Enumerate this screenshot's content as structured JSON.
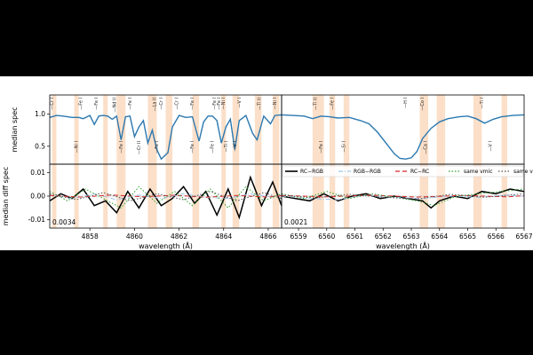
{
  "chart_data": {
    "type": "line",
    "panels": [
      {
        "name": "left",
        "xlim": [
          4856.2,
          4866.6
        ],
        "xticks": [
          4858,
          4860,
          4862,
          4864,
          4866
        ],
        "xlabel": "wavelength (Å)",
        "top": {
          "ylabel": "median spec",
          "ylim": [
            0.22,
            1.3
          ],
          "yticks": [
            0.5,
            1.0
          ],
          "ytick_labels": [
            "0.5",
            "1.0"
          ],
          "series": [
            {
              "name": "median spectrum",
              "color": "#2b78b0",
              "x": [
                4856.2,
                4856.5,
                4856.8,
                4857.0,
                4857.2,
                4857.5,
                4857.7,
                4858.0,
                4858.2,
                4858.4,
                4858.6,
                4858.8,
                4859.0,
                4859.2,
                4859.4,
                4859.6,
                4859.8,
                4860.0,
                4860.2,
                4860.4,
                4860.6,
                4860.8,
                4861.0,
                4861.2,
                4861.5,
                4861.7,
                4862.0,
                4862.3,
                4862.6,
                4862.9,
                4863.1,
                4863.3,
                4863.5,
                4863.7,
                4863.9,
                4864.1,
                4864.3,
                4864.5,
                4864.7,
                4865.0,
                4865.3,
                4865.5,
                4865.8,
                4866.1,
                4866.3,
                4866.6
              ],
              "y": [
                0.95,
                0.98,
                0.97,
                0.96,
                0.95,
                0.95,
                0.93,
                0.98,
                0.84,
                0.97,
                0.98,
                0.97,
                0.92,
                0.97,
                0.6,
                0.96,
                0.97,
                0.65,
                0.8,
                0.9,
                0.55,
                0.75,
                0.45,
                0.3,
                0.4,
                0.8,
                0.98,
                0.95,
                0.96,
                0.58,
                0.88,
                0.97,
                0.97,
                0.9,
                0.55,
                0.8,
                0.92,
                0.45,
                0.9,
                0.98,
                0.7,
                0.6,
                0.97,
                0.85,
                0.98,
                0.99
              ]
            }
          ]
        },
        "bottom": {
          "ylabel": "median diff spec",
          "ylim": [
            -0.0135,
            0.0135
          ],
          "yticks": [
            -0.01,
            0.0,
            0.01
          ],
          "ytick_labels": [
            "-0.01",
            "0.00",
            "0.01"
          ],
          "annotation": "0.0034",
          "series": [
            {
              "name": "RC−RGB",
              "color": "#000000",
              "style": "solid",
              "x": [
                4856.2,
                4856.7,
                4857.2,
                4857.7,
                4858.2,
                4858.7,
                4859.2,
                4859.7,
                4860.2,
                4860.7,
                4861.2,
                4861.7,
                4862.2,
                4862.7,
                4863.2,
                4863.7,
                4864.2,
                4864.7,
                4865.2,
                4865.7,
                4866.2,
                4866.6
              ],
              "y": [
                -0.002,
                0.001,
                -0.001,
                0.003,
                -0.004,
                -0.002,
                -0.007,
                0.002,
                -0.005,
                0.003,
                -0.004,
                -0.001,
                0.004,
                -0.003,
                0.002,
                -0.008,
                0.003,
                -0.009,
                0.008,
                -0.004,
                0.006,
                -0.004
              ]
            },
            {
              "name": "RGB−RGB",
              "color": "#9fc5e8",
              "style": "dashdot",
              "x": [
                4856.2,
                4857.2,
                4858.2,
                4859.2,
                4860.2,
                4861.2,
                4862.2,
                4863.2,
                4864.2,
                4865.2,
                4866.2,
                4866.6
              ],
              "y": [
                0.0005,
                -0.001,
                0.001,
                -0.0015,
                0.0005,
                -0.001,
                0.001,
                -0.0005,
                -0.001,
                0.001,
                -0.0005,
                0.0005
              ]
            },
            {
              "name": "RC−RC",
              "color": "#d62728",
              "style": "dashed",
              "x": [
                4856.2,
                4857.6,
                4859.0,
                4860.4,
                4861.8,
                4863.2,
                4864.6,
                4866.0,
                4866.6
              ],
              "y": [
                0.0003,
                -0.0004,
                0.0005,
                -0.0003,
                0.0004,
                -0.0005,
                0.0003,
                -0.0004,
                0.0002
              ]
            },
            {
              "name": "same vmic",
              "color": "#2ca02c",
              "style": "dotted",
              "x": [
                4856.2,
                4857.0,
                4857.8,
                4858.6,
                4859.4,
                4860.2,
                4861.0,
                4861.8,
                4862.6,
                4863.4,
                4864.2,
                4865.0,
                4865.8,
                4866.6
              ],
              "y": [
                0.002,
                -0.002,
                0.003,
                -0.001,
                -0.005,
                0.004,
                -0.003,
                0.002,
                -0.004,
                0.003,
                -0.005,
                0.004,
                -0.002,
                0.001
              ]
            },
            {
              "name": "same vsini",
              "color": "#555555",
              "style": "dotted",
              "x": [
                4856.2,
                4857.4,
                4858.6,
                4859.8,
                4861.0,
                4862.2,
                4863.4,
                4864.6,
                4865.8,
                4866.6
              ],
              "y": [
                0.001,
                -0.0015,
                0.0015,
                -0.002,
                0.001,
                -0.0015,
                0.002,
                -0.002,
                0.0015,
                -0.001
              ]
            }
          ]
        },
        "line_ids": [
          {
            "label": "Cr I",
            "x": 4856.3,
            "pos": "top"
          },
          {
            "label": "Fe I",
            "x": 4857.6,
            "pos": "top"
          },
          {
            "label": "Fe I",
            "x": 4858.3,
            "pos": "top"
          },
          {
            "label": "Nd II",
            "x": 4859.1,
            "pos": "top"
          },
          {
            "label": "Fe I",
            "x": 4859.8,
            "pos": "top"
          },
          {
            "label": "La II",
            "x": 4860.9,
            "pos": "top"
          },
          {
            "label": "Cr I",
            "x": 4861.2,
            "pos": "top"
          },
          {
            "label": "Cr I",
            "x": 4861.9,
            "pos": "top"
          },
          {
            "label": "Fe I",
            "x": 4862.6,
            "pos": "top"
          },
          {
            "label": "Fe I",
            "x": 4863.6,
            "pos": "top"
          },
          {
            "label": "Fe I",
            "x": 4863.8,
            "pos": "top"
          },
          {
            "label": "Ni I",
            "x": 4864.0,
            "pos": "top"
          },
          {
            "label": "V I",
            "x": 4864.7,
            "pos": "top"
          },
          {
            "label": "Ti II",
            "x": 4865.6,
            "pos": "top"
          },
          {
            "label": "Ni I",
            "x": 4866.3,
            "pos": "top"
          },
          {
            "label": "Ni I",
            "x": 4857.4,
            "pos": "low"
          },
          {
            "label": "Fe I",
            "x": 4859.4,
            "pos": "low"
          },
          {
            "label": "Cr II",
            "x": 4860.2,
            "pos": "low"
          },
          {
            "label": "Fe I",
            "x": 4861.0,
            "pos": "low"
          },
          {
            "label": "Fe I",
            "x": 4862.6,
            "pos": "low"
          },
          {
            "label": "Fe I",
            "x": 4863.5,
            "pos": "low"
          },
          {
            "label": "Ti I",
            "x": 4864.1,
            "pos": "low"
          },
          {
            "label": "V I",
            "x": 4864.5,
            "pos": "low"
          }
        ],
        "bands": [
          [
            4856.3,
            4856.5
          ],
          [
            4857.3,
            4857.5
          ],
          [
            4858.6,
            4858.8
          ],
          [
            4859.2,
            4859.6
          ],
          [
            4860.6,
            4861.0
          ],
          [
            4861.4,
            4861.7
          ],
          [
            4862.6,
            4862.9
          ],
          [
            4863.9,
            4864.1
          ],
          [
            4864.4,
            4864.7
          ],
          [
            4865.4,
            4865.7
          ],
          [
            4866.2,
            4866.5
          ]
        ]
      },
      {
        "name": "right",
        "xlim": [
          6558.4,
          6567.0
        ],
        "xticks": [
          6559,
          6560,
          6561,
          6562,
          6563,
          6564,
          6565,
          6566,
          6567
        ],
        "xlabel": "wavelength (Å)",
        "top": {
          "ylim": [
            0.22,
            1.3
          ],
          "series": [
            {
              "name": "median spectrum",
              "color": "#2b78b0",
              "x": [
                6558.4,
                6558.8,
                6559.2,
                6559.5,
                6559.8,
                6560.1,
                6560.4,
                6560.8,
                6561.2,
                6561.5,
                6561.8,
                6562.1,
                6562.4,
                6562.6,
                6562.8,
                6563.0,
                6563.2,
                6563.4,
                6563.7,
                6564.0,
                6564.3,
                6564.7,
                6565.0,
                6565.3,
                6565.6,
                6565.9,
                6566.2,
                6566.6,
                6567.0
              ],
              "y": [
                0.99,
                0.98,
                0.97,
                0.93,
                0.97,
                0.96,
                0.94,
                0.95,
                0.9,
                0.85,
                0.72,
                0.55,
                0.38,
                0.31,
                0.3,
                0.32,
                0.42,
                0.62,
                0.78,
                0.88,
                0.93,
                0.96,
                0.97,
                0.93,
                0.86,
                0.92,
                0.96,
                0.98,
                0.99
              ]
            }
          ]
        },
        "bottom": {
          "annotation": "0.0021",
          "legend": {
            "placement": "top",
            "entries": [
              "RC−RGB",
              "RGB−RGB",
              "RC−RC",
              "same vmic",
              "same vsini"
            ]
          },
          "series": [
            {
              "name": "RC−RGB",
              "color": "#000000",
              "style": "solid",
              "x": [
                6558.4,
                6558.9,
                6559.4,
                6559.9,
                6560.4,
                6560.9,
                6561.4,
                6561.9,
                6562.4,
                6562.9,
                6563.4,
                6563.7,
                6564.0,
                6564.5,
                6565.0,
                6565.5,
                6566.0,
                6566.5,
                6567.0
              ],
              "y": [
                0.0,
                -0.001,
                -0.002,
                0.001,
                -0.002,
                0.0,
                0.001,
                -0.001,
                0.0,
                -0.001,
                -0.002,
                -0.005,
                -0.002,
                0.0,
                -0.001,
                0.002,
                0.001,
                0.003,
                0.002
              ]
            },
            {
              "name": "RGB−RGB",
              "color": "#9fc5e8",
              "style": "dashdot",
              "x": [
                6558.4,
                6559.4,
                6560.4,
                6561.4,
                6562.4,
                6563.4,
                6564.4,
                6565.4,
                6566.4,
                6567.0
              ],
              "y": [
                0.0,
                -0.001,
                -0.0015,
                0.0005,
                -0.0005,
                -0.001,
                0.0,
                -0.0005,
                0.0005,
                0.0
              ]
            },
            {
              "name": "RC−RC",
              "color": "#d62728",
              "style": "dashed",
              "x": [
                6558.4,
                6560.0,
                6561.6,
                6563.2,
                6564.8,
                6566.4,
                6567.0
              ],
              "y": [
                0.0003,
                -0.0003,
                0.0004,
                -0.0004,
                0.0003,
                -0.0003,
                0.0002
              ]
            },
            {
              "name": "same vmic",
              "color": "#2ca02c",
              "style": "dotted",
              "x": [
                6558.4,
                6559.2,
                6560.0,
                6560.8,
                6561.6,
                6562.4,
                6563.2,
                6563.8,
                6564.6,
                6565.4,
                6566.2,
                6567.0
              ],
              "y": [
                0.001,
                -0.001,
                0.002,
                -0.001,
                0.001,
                -0.0005,
                -0.002,
                -0.004,
                0.0,
                0.001,
                0.002,
                0.003
              ]
            },
            {
              "name": "same vsini",
              "color": "#555555",
              "style": "dotted",
              "x": [
                6558.4,
                6559.6,
                6560.8,
                6562.0,
                6563.2,
                6564.4,
                6565.6,
                6567.0
              ],
              "y": [
                0.0005,
                -0.0008,
                0.0008,
                -0.0005,
                -0.0012,
                0.0008,
                -0.0005,
                0.001
              ]
            }
          ]
        },
        "line_ids": [
          {
            "label": "Ti II",
            "x": 6559.6,
            "pos": "top"
          },
          {
            "label": "Fe I",
            "x": 6560.2,
            "pos": "top"
          },
          {
            "label": "H I",
            "x": 6562.8,
            "pos": "top"
          },
          {
            "label": "Co I",
            "x": 6563.4,
            "pos": "top"
          },
          {
            "label": "Ti I",
            "x": 6565.5,
            "pos": "top"
          },
          {
            "label": "Fe I",
            "x": 6559.8,
            "pos": "low"
          },
          {
            "label": "Si I",
            "x": 6560.6,
            "pos": "low"
          },
          {
            "label": "Ca I",
            "x": 6563.5,
            "pos": "low"
          },
          {
            "label": "V I",
            "x": 6565.8,
            "pos": "low"
          }
        ],
        "bands": [
          [
            6559.5,
            6559.9
          ],
          [
            6560.1,
            6560.3
          ],
          [
            6560.6,
            6560.8
          ],
          [
            6563.3,
            6563.6
          ],
          [
            6563.9,
            6564.2
          ],
          [
            6565.2,
            6565.5
          ],
          [
            6566.2,
            6566.4
          ]
        ]
      }
    ]
  }
}
